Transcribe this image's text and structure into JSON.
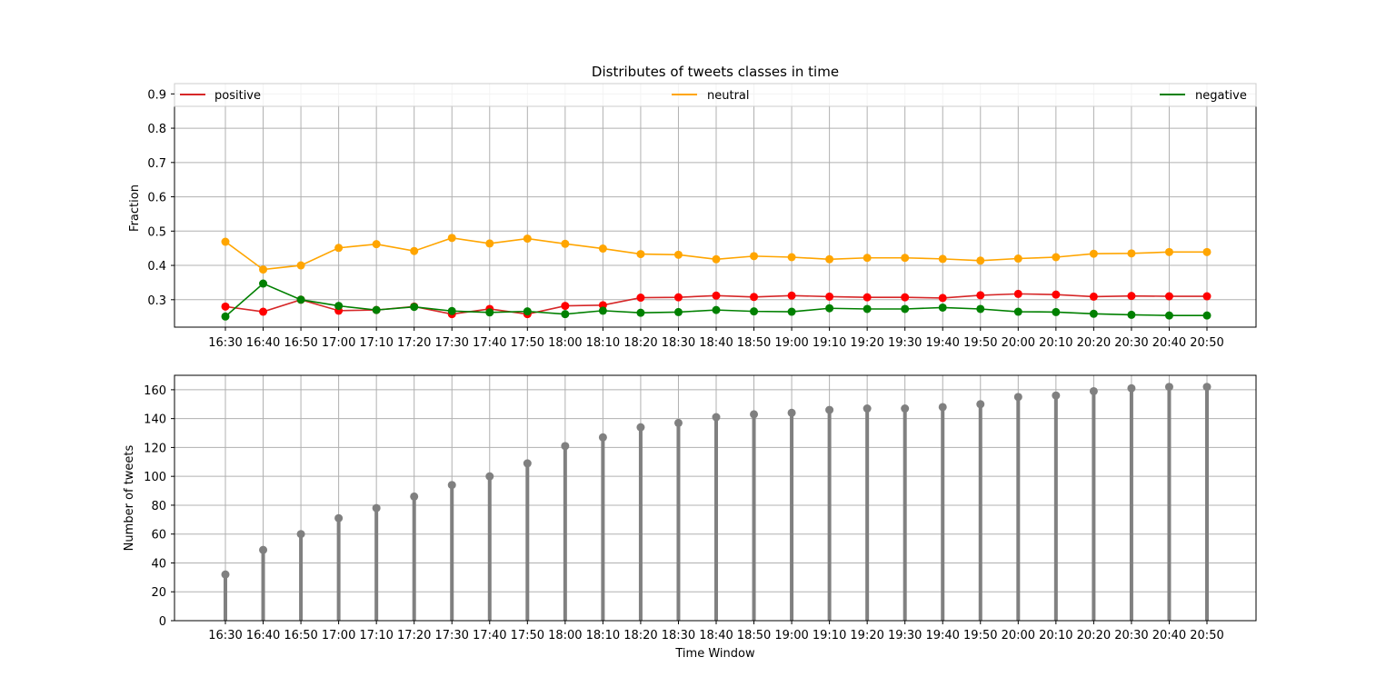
{
  "chart_data": [
    {
      "type": "line",
      "title": "Distributes of tweets classes in time",
      "xlabel": "",
      "ylabel": "Fraction",
      "ylim": [
        0.22,
        0.93
      ],
      "yticks": [
        0.3,
        0.4,
        0.5,
        0.6,
        0.7,
        0.8,
        0.9
      ],
      "ytick_labels": [
        "0.3",
        "0.4",
        "0.5",
        "0.6",
        "0.7",
        "0.8",
        "0.9"
      ],
      "grid": true,
      "legend": "top (spread across)",
      "categories": [
        "16:30",
        "16:40",
        "16:50",
        "17:00",
        "17:10",
        "17:20",
        "17:30",
        "17:40",
        "17:50",
        "18:00",
        "18:10",
        "18:20",
        "18:30",
        "18:40",
        "18:50",
        "19:00",
        "19:10",
        "19:20",
        "19:30",
        "19:40",
        "19:50",
        "20:00",
        "20:10",
        "20:20",
        "20:30",
        "20:40",
        "20:50"
      ],
      "series": [
        {
          "name": "positive",
          "color": "#ff0000",
          "line_color": "#d62728",
          "values": [
            0.28,
            0.265,
            0.3,
            0.268,
            0.27,
            0.28,
            0.258,
            0.273,
            0.258,
            0.282,
            0.284,
            0.306,
            0.307,
            0.312,
            0.308,
            0.312,
            0.309,
            0.307,
            0.307,
            0.305,
            0.313,
            0.317,
            0.315,
            0.309,
            0.311,
            0.31,
            0.31
          ]
        },
        {
          "name": "neutral",
          "color": "#ffa500",
          "line_color": "#ffa500",
          "values": [
            0.469,
            0.388,
            0.4,
            0.451,
            0.462,
            0.442,
            0.48,
            0.464,
            0.478,
            0.463,
            0.449,
            0.433,
            0.431,
            0.418,
            0.427,
            0.424,
            0.418,
            0.422,
            0.422,
            0.419,
            0.414,
            0.42,
            0.424,
            0.434,
            0.435,
            0.439,
            0.439
          ]
        },
        {
          "name": "negative",
          "color": "#008000",
          "line_color": "#008000",
          "values": [
            0.251,
            0.347,
            0.3,
            0.282,
            0.27,
            0.279,
            0.267,
            0.263,
            0.266,
            0.258,
            0.268,
            0.262,
            0.264,
            0.27,
            0.266,
            0.265,
            0.275,
            0.273,
            0.273,
            0.277,
            0.273,
            0.265,
            0.264,
            0.259,
            0.256,
            0.254,
            0.254
          ]
        }
      ]
    },
    {
      "type": "bar",
      "title": "",
      "xlabel": "Time Window",
      "ylabel": "Number of tweets",
      "ylim": [
        0,
        170
      ],
      "yticks": [
        0,
        20,
        40,
        60,
        80,
        100,
        120,
        140,
        160
      ],
      "ytick_labels": [
        "0",
        "20",
        "40",
        "60",
        "80",
        "100",
        "120",
        "140",
        "160"
      ],
      "grid": true,
      "color": "#808080",
      "categories": [
        "16:30",
        "16:40",
        "16:50",
        "17:00",
        "17:10",
        "17:20",
        "17:30",
        "17:40",
        "17:50",
        "18:00",
        "18:10",
        "18:20",
        "18:30",
        "18:40",
        "18:50",
        "19:00",
        "19:10",
        "19:20",
        "19:30",
        "19:40",
        "19:50",
        "20:00",
        "20:10",
        "20:20",
        "20:30",
        "20:40",
        "20:50"
      ],
      "values": [
        32,
        49,
        60,
        71,
        78,
        86,
        94,
        100,
        109,
        121,
        127,
        134,
        137,
        141,
        143,
        144,
        146,
        147,
        147,
        148,
        150,
        155,
        156,
        159,
        161,
        162,
        162
      ]
    }
  ]
}
